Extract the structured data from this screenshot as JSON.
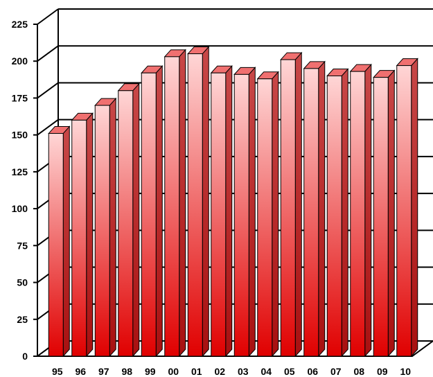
{
  "chart_data": {
    "type": "bar",
    "style": "3d-column",
    "title": "",
    "xlabel": "",
    "ylabel": "",
    "categories": [
      "95",
      "96",
      "97",
      "98",
      "99",
      "00",
      "01",
      "02",
      "03",
      "04",
      "05",
      "06",
      "07",
      "08",
      "09",
      "10"
    ],
    "values": [
      151,
      160,
      170,
      180,
      192,
      203,
      205,
      192,
      191,
      188,
      201,
      195,
      190,
      193,
      189,
      197
    ],
    "ylim": [
      0,
      225
    ],
    "yticks": [
      "0",
      "25",
      "50",
      "75",
      "100",
      "125",
      "150",
      "175",
      "200",
      "225"
    ],
    "grid": true,
    "legend": "none",
    "colors": {
      "bar_front_dark": "#e00000",
      "bar_front_light": "#ffd6d6",
      "bar_side": "#a81010",
      "bar_top": "#f07070",
      "outline": "#000000",
      "grid": "#000000"
    }
  }
}
